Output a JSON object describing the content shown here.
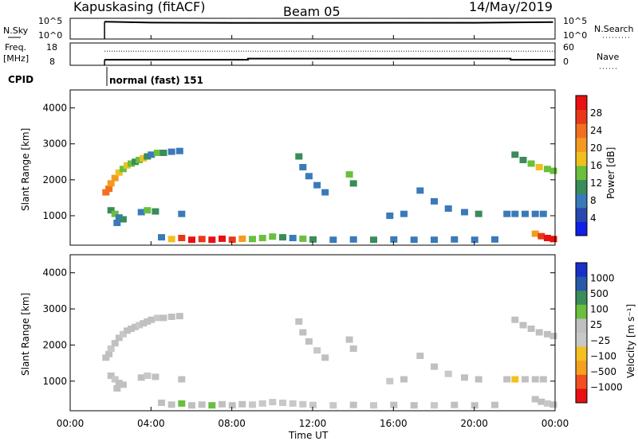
{
  "header": {
    "radar": "Kapuskasing (fitACF)",
    "beam": "Beam 05",
    "date": "14/May/2019"
  },
  "status": {
    "nsky_label": "N.Sky",
    "nsearch_label": "N.Search",
    "freq_label": "Freq.",
    "freq_unit": "[MHz]",
    "nave_label": "Nave",
    "cpid_label": "CPID",
    "cpid_value": "normal (fast) 151",
    "noise_ticks": [
      "10^5",
      "10^0"
    ],
    "freq_ticks": [
      "18",
      "8"
    ],
    "nave_ticks": [
      "60",
      "0"
    ]
  },
  "axes": {
    "xlabel": "Time UT",
    "ylabel": "Slant Range [km]",
    "xticks": [
      "00:00",
      "04:00",
      "08:00",
      "12:00",
      "16:00",
      "20:00",
      "00:00"
    ],
    "yticks": [
      "1000",
      "2000",
      "3000",
      "4000"
    ]
  },
  "colorbars": {
    "power_label": "Power [dB]",
    "power_ticks": [
      "4",
      "8",
      "12",
      "16",
      "20",
      "24",
      "28"
    ],
    "velocity_label": "Velocity [m s⁻¹]",
    "velocity_ticks": [
      "1000",
      "500",
      "100",
      "25",
      "−25",
      "−100",
      "−500",
      "−1000"
    ]
  },
  "chart_data": [
    {
      "type": "line",
      "panel": "noise",
      "series": [
        {
          "name": "N.Sky",
          "x": [
            1.7,
            4,
            8,
            12,
            16,
            20,
            23.9
          ],
          "y": [
            15000,
            9000,
            8000,
            8000,
            8500,
            8500,
            12000
          ]
        },
        {
          "name": "N.Search",
          "x": [
            1.7,
            4,
            8,
            12,
            16,
            20,
            23.9
          ],
          "y": [
            17000,
            11000,
            10000,
            10000,
            11000,
            11000,
            14000
          ]
        }
      ],
      "xlim": [
        0,
        24
      ],
      "ylim": [
        1,
        100000
      ]
    },
    {
      "type": "line",
      "panel": "frequency",
      "series": [
        {
          "name": "Freq.",
          "x": [
            1.7,
            8.8,
            8.8,
            21.8,
            21.8,
            24
          ],
          "y": [
            10.5,
            10.5,
            11.0,
            11.0,
            10.5,
            10.5
          ]
        },
        {
          "name": "Nave",
          "x": [
            1.7,
            24
          ],
          "y": [
            38,
            38
          ]
        }
      ],
      "xlim": [
        0,
        24
      ]
    },
    {
      "type": "heatmap",
      "panel": "power",
      "quantity": "Power [dB]",
      "xlim": [
        0,
        24
      ],
      "ylim": [
        180,
        4500
      ],
      "zlim": [
        0,
        30
      ],
      "cells": [
        [
          1.75,
          1650,
          23
        ],
        [
          1.9,
          1750,
          21
        ],
        [
          2.0,
          1900,
          20
        ],
        [
          2.2,
          2050,
          18
        ],
        [
          2.4,
          2200,
          15
        ],
        [
          2.6,
          2300,
          14
        ],
        [
          2.8,
          2400,
          16
        ],
        [
          3.0,
          2450,
          12
        ],
        [
          3.2,
          2500,
          10
        ],
        [
          3.4,
          2550,
          13
        ],
        [
          3.6,
          2600,
          17
        ],
        [
          3.8,
          2650,
          10
        ],
        [
          4.0,
          2700,
          8
        ],
        [
          4.3,
          2750,
          12
        ],
        [
          4.6,
          2750,
          9
        ],
        [
          5.0,
          2780,
          7
        ],
        [
          5.4,
          2800,
          8
        ],
        [
          2.0,
          1150,
          9
        ],
        [
          2.2,
          1050,
          13
        ],
        [
          2.4,
          950,
          8
        ],
        [
          2.6,
          900,
          10
        ],
        [
          2.3,
          800,
          6
        ],
        [
          3.5,
          1100,
          8
        ],
        [
          3.8,
          1150,
          12
        ],
        [
          4.2,
          1120,
          9
        ],
        [
          5.5,
          1050,
          7
        ],
        [
          11.3,
          2650,
          9
        ],
        [
          11.5,
          2350,
          8
        ],
        [
          11.8,
          2100,
          7
        ],
        [
          12.2,
          1850,
          8
        ],
        [
          12.6,
          1650,
          6
        ],
        [
          14.0,
          1900,
          9
        ],
        [
          13.8,
          2150,
          12
        ],
        [
          15.8,
          1000,
          8
        ],
        [
          16.5,
          1050,
          7
        ],
        [
          17.3,
          1700,
          6
        ],
        [
          18.0,
          1400,
          7
        ],
        [
          18.7,
          1200,
          8
        ],
        [
          19.5,
          1100,
          6
        ],
        [
          20.2,
          1050,
          9
        ],
        [
          21.6,
          1050,
          8
        ],
        [
          22.0,
          1050,
          6
        ],
        [
          22.5,
          1050,
          7
        ],
        [
          23.0,
          1050,
          6
        ],
        [
          23.4,
          1050,
          7
        ],
        [
          22.0,
          2700,
          9
        ],
        [
          22.4,
          2550,
          11
        ],
        [
          22.8,
          2450,
          13
        ],
        [
          23.2,
          2350,
          15
        ],
        [
          23.6,
          2300,
          12
        ],
        [
          23.9,
          2250,
          14
        ],
        [
          4.5,
          400,
          8
        ],
        [
          5.0,
          350,
          16
        ],
        [
          5.5,
          380,
          24
        ],
        [
          6.0,
          330,
          28
        ],
        [
          6.5,
          350,
          26
        ],
        [
          7.0,
          330,
          30
        ],
        [
          7.5,
          360,
          28
        ],
        [
          8.0,
          330,
          24
        ],
        [
          8.5,
          360,
          18
        ],
        [
          9.0,
          350,
          14
        ],
        [
          9.5,
          380,
          12
        ],
        [
          10.0,
          420,
          14
        ],
        [
          10.5,
          400,
          10
        ],
        [
          11.0,
          380,
          8
        ],
        [
          11.5,
          360,
          12
        ],
        [
          12.0,
          340,
          9
        ],
        [
          13.0,
          330,
          8
        ],
        [
          14.0,
          340,
          7
        ],
        [
          15.0,
          330,
          9
        ],
        [
          16.0,
          340,
          6
        ],
        [
          17.0,
          330,
          8
        ],
        [
          18.0,
          330,
          7
        ],
        [
          19.0,
          340,
          6
        ],
        [
          20.0,
          330,
          8
        ],
        [
          21.0,
          340,
          7
        ],
        [
          23.0,
          500,
          20
        ],
        [
          23.3,
          430,
          24
        ],
        [
          23.6,
          380,
          28
        ],
        [
          23.9,
          350,
          30
        ]
      ]
    },
    {
      "type": "heatmap",
      "panel": "velocity",
      "quantity": "Velocity [m s⁻¹]",
      "xlim": [
        0,
        24
      ],
      "ylim": [
        180,
        4500
      ],
      "zlim": [
        -1000,
        1000
      ],
      "cells": [
        [
          1.75,
          1650,
          0
        ],
        [
          1.9,
          1750,
          5
        ],
        [
          2.0,
          1900,
          -10
        ],
        [
          2.2,
          2050,
          0
        ],
        [
          2.4,
          2200,
          10
        ],
        [
          2.6,
          2300,
          -5
        ],
        [
          2.8,
          2400,
          0
        ],
        [
          3.0,
          2450,
          5
        ],
        [
          3.2,
          2500,
          0
        ],
        [
          3.4,
          2550,
          -8
        ],
        [
          3.6,
          2600,
          0
        ],
        [
          3.8,
          2650,
          6
        ],
        [
          4.0,
          2700,
          0
        ],
        [
          4.3,
          2750,
          -4
        ],
        [
          4.6,
          2750,
          0
        ],
        [
          5.0,
          2780,
          3
        ],
        [
          5.4,
          2800,
          0
        ],
        [
          2.0,
          1150,
          0
        ],
        [
          2.2,
          1050,
          -10
        ],
        [
          2.4,
          950,
          0
        ],
        [
          2.6,
          900,
          8
        ],
        [
          2.3,
          800,
          0
        ],
        [
          3.5,
          1100,
          0
        ],
        [
          3.8,
          1150,
          -6
        ],
        [
          4.2,
          1120,
          0
        ],
        [
          5.5,
          1050,
          0
        ],
        [
          11.3,
          2650,
          0
        ],
        [
          11.5,
          2350,
          0
        ],
        [
          11.8,
          2100,
          0
        ],
        [
          12.2,
          1850,
          -8
        ],
        [
          12.6,
          1650,
          0
        ],
        [
          14.0,
          1900,
          0
        ],
        [
          13.8,
          2150,
          0
        ],
        [
          15.8,
          1000,
          -200
        ],
        [
          16.5,
          1050,
          0
        ],
        [
          17.3,
          1700,
          0
        ],
        [
          18.0,
          1400,
          0
        ],
        [
          18.7,
          1200,
          -150
        ],
        [
          19.5,
          1100,
          0
        ],
        [
          20.2,
          1050,
          0
        ],
        [
          21.6,
          1050,
          0
        ],
        [
          22.0,
          1050,
          -300
        ],
        [
          22.5,
          1050,
          0
        ],
        [
          23.0,
          1050,
          0
        ],
        [
          23.4,
          1050,
          0
        ],
        [
          22.0,
          2700,
          0
        ],
        [
          22.4,
          2550,
          0
        ],
        [
          22.8,
          2450,
          0
        ],
        [
          23.2,
          2350,
          0
        ],
        [
          23.6,
          2300,
          0
        ],
        [
          23.9,
          2250,
          0
        ],
        [
          4.5,
          400,
          150
        ],
        [
          5.0,
          350,
          100
        ],
        [
          5.5,
          380,
          200
        ],
        [
          6.0,
          330,
          150
        ],
        [
          6.5,
          350,
          100
        ],
        [
          7.0,
          330,
          200
        ],
        [
          7.5,
          360,
          100
        ],
        [
          8.0,
          330,
          150
        ],
        [
          8.5,
          360,
          100
        ],
        [
          9.0,
          350,
          -50
        ],
        [
          9.5,
          380,
          -80
        ],
        [
          10.0,
          420,
          -100
        ],
        [
          10.5,
          400,
          -150
        ],
        [
          11.0,
          380,
          -100
        ],
        [
          11.5,
          360,
          -60
        ],
        [
          12.0,
          340,
          -40
        ],
        [
          13.0,
          330,
          -80
        ],
        [
          14.0,
          340,
          0
        ],
        [
          15.0,
          330,
          -50
        ],
        [
          16.0,
          340,
          0
        ],
        [
          17.0,
          330,
          0
        ],
        [
          18.0,
          330,
          -60
        ],
        [
          19.0,
          340,
          0
        ],
        [
          20.0,
          330,
          0
        ],
        [
          21.0,
          340,
          0
        ],
        [
          23.0,
          500,
          150
        ],
        [
          23.3,
          430,
          120
        ],
        [
          23.6,
          380,
          -100
        ],
        [
          23.9,
          350,
          0
        ]
      ]
    }
  ],
  "colors": {
    "power_scale": [
      "#1020e8",
      "#2848b0",
      "#3a7ab8",
      "#3a8c5a",
      "#6abf3c",
      "#f0c020",
      "#f59a20",
      "#f07020",
      "#e83818",
      "#e81010"
    ],
    "velocity_scale": [
      "#e81010",
      "#f05020",
      "#f5a020",
      "#f5c020",
      "#c8c8c8",
      "#c0c0c0",
      "#6abf3c",
      "#3a8c5a",
      "#2858a8",
      "#1830c8"
    ],
    "axes": "#000000"
  }
}
